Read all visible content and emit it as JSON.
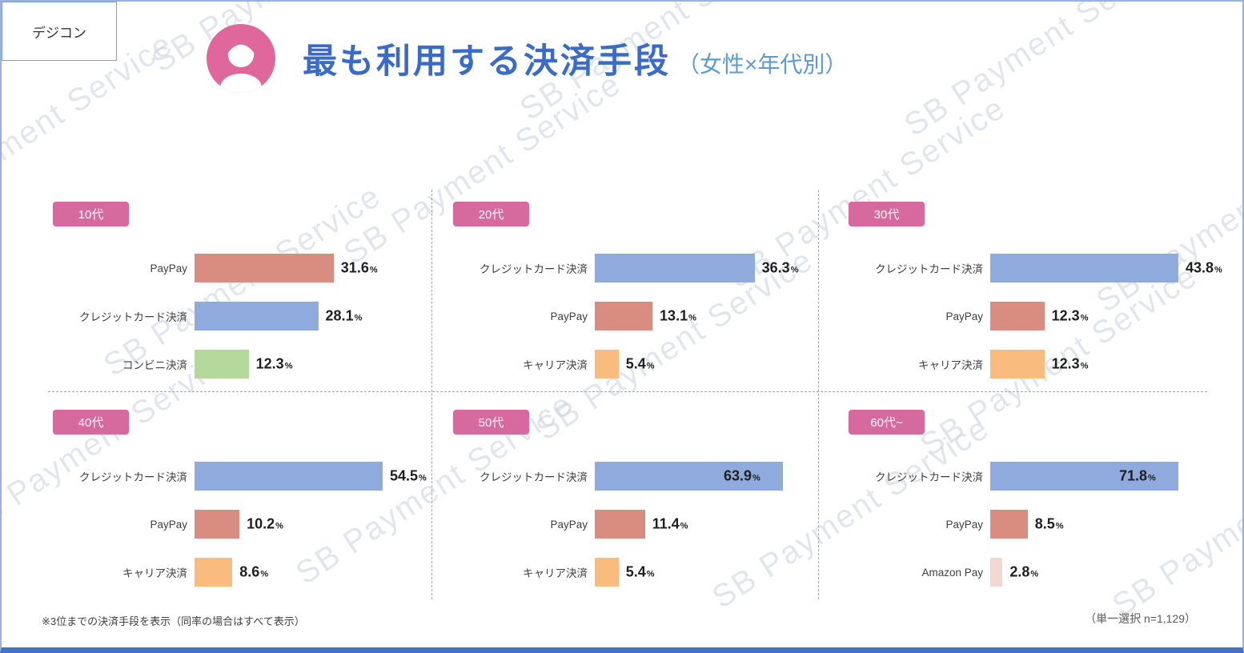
{
  "page": {
    "corner_label": "デジコン",
    "watermark": "SB Payment Service",
    "footnote_left": "※3位までの決済手段を表示（同率の場合はすべて表示）",
    "footnote_right": "（単一選択 n=1,129）"
  },
  "colors": {
    "title_blue": "#3a6bc7",
    "subtitle_blue": "#5b9bd5",
    "badge_pink": "#d6699e",
    "avatar_pink": "#e0679b",
    "paypay": "#d98c80",
    "credit": "#8faadc",
    "konbini": "#b5d99c",
    "carrier": "#f9bc7e",
    "amazonpay": "#f3d8d2"
  },
  "chart_data": {
    "type": "bar",
    "orientation": "horizontal",
    "title": "最も利用する決済手段",
    "subtitle": "（女性×年代別）",
    "unit": "%",
    "value_range": [
      0,
      80
    ],
    "grid": false,
    "legend": false,
    "panels": [
      {
        "age": "10代",
        "bars": [
          {
            "label": "PayPay",
            "value": 31.6,
            "color_key": "paypay"
          },
          {
            "label": "クレジットカード決済",
            "value": 28.1,
            "color_key": "credit"
          },
          {
            "label": "コンビニ決済",
            "value": 12.3,
            "color_key": "konbini"
          }
        ]
      },
      {
        "age": "20代",
        "bars": [
          {
            "label": "クレジットカード決済",
            "value": 36.3,
            "color_key": "credit"
          },
          {
            "label": "PayPay",
            "value": 13.1,
            "color_key": "paypay"
          },
          {
            "label": "キャリア決済",
            "value": 5.4,
            "color_key": "carrier"
          }
        ]
      },
      {
        "age": "30代",
        "bars": [
          {
            "label": "クレジットカード決済",
            "value": 43.8,
            "color_key": "credit"
          },
          {
            "label": "PayPay",
            "value": 12.3,
            "color_key": "paypay"
          },
          {
            "label": "キャリア決済",
            "value": 12.3,
            "color_key": "carrier"
          }
        ]
      },
      {
        "age": "40代",
        "bars": [
          {
            "label": "クレジットカード決済",
            "value": 54.5,
            "color_key": "credit"
          },
          {
            "label": "PayPay",
            "value": 10.2,
            "color_key": "paypay"
          },
          {
            "label": "キャリア決済",
            "value": 8.6,
            "color_key": "carrier"
          }
        ]
      },
      {
        "age": "50代",
        "bars": [
          {
            "label": "クレジットカード決済",
            "value": 63.9,
            "color_key": "credit"
          },
          {
            "label": "PayPay",
            "value": 11.4,
            "color_key": "paypay"
          },
          {
            "label": "キャリア決済",
            "value": 5.4,
            "color_key": "carrier"
          }
        ]
      },
      {
        "age": "60代~",
        "bars": [
          {
            "label": "クレジットカード決済",
            "value": 71.8,
            "color_key": "credit"
          },
          {
            "label": "PayPay",
            "value": 8.5,
            "color_key": "paypay"
          },
          {
            "label": "Amazon Pay",
            "value": 2.8,
            "color_key": "amazonpay"
          }
        ]
      }
    ]
  }
}
